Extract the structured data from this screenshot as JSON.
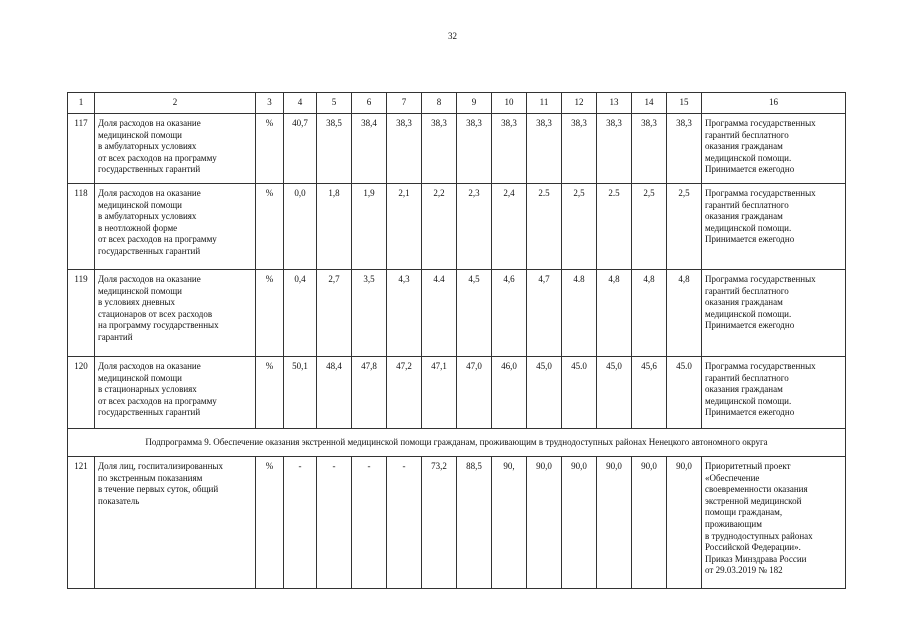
{
  "page_number": "32",
  "table": {
    "header": [
      "1",
      "2",
      "3",
      "4",
      "5",
      "6",
      "7",
      "8",
      "9",
      "10",
      "11",
      "12",
      "13",
      "14",
      "15",
      "16"
    ],
    "rows": [
      {
        "type": "row",
        "num": "117",
        "name": "Доля расходов на оказание\nмедицинской помощи\nв амбулаторных условиях\nот всех расходов на программу\nгосударственных гарантий",
        "unit": "%",
        "values": [
          "40,7",
          "38,5",
          "38,4",
          "38,3",
          "38,3",
          "38,3",
          "38,3",
          "38,3",
          "38,3",
          "38,3",
          "38,3",
          "38,3"
        ],
        "source": "Программа государственных\nгарантий бесплатного\nоказания гражданам\nмедицинской помощи.\nПринимается ежегодно"
      },
      {
        "type": "row",
        "num": "118",
        "name": "Доля расходов на оказание\nмедицинской помощи\nв амбулаторных условиях\nв неотложной форме\nот всех расходов на программу\nгосударственных гарантий",
        "unit": "%",
        "values": [
          "0,0",
          "1,8",
          "1,9",
          "2,1",
          "2,2",
          "2,3",
          "2,4",
          "2.5",
          "2,5",
          "2.5",
          "2,5",
          "2,5"
        ],
        "source": "Программа государственных\nгарантий бесплатного\nоказания гражданам\nмедицинской помощи.\nПринимается ежегодно"
      },
      {
        "type": "row",
        "num": "119",
        "name": "Доля расходов на оказание\nмедицинской помощи\nв условиях дневных\nстационаров от всех расходов\nна программу государственных\nгарантий",
        "unit": "%",
        "values": [
          "0,4",
          "2,7",
          "3,5",
          "4,3",
          "4.4",
          "4,5",
          "4,6",
          "4,7",
          "4.8",
          "4,8",
          "4,8",
          "4,8"
        ],
        "source": "Программа государственных\nгарантий бесплатного\nоказания гражданам\nмедицинской помощи.\nПринимается ежегодно"
      },
      {
        "type": "row",
        "num": "120",
        "name": "Доля расходов на оказание\nмедицинской помощи\nв стационарных условиях\nот всех расходов на программу\nгосударственных гарантий",
        "unit": "%",
        "values": [
          "50,1",
          "48,4",
          "47,8",
          "47,2",
          "47,1",
          "47,0",
          "46,0",
          "45,0",
          "45.0",
          "45,0",
          "45,6",
          "45.0"
        ],
        "source": "Программа государственных\nгарантий бесплатного\nоказания гражданам\nмедицинской помощи.\nПринимается ежегодно"
      },
      {
        "type": "sub",
        "text": "Подпрограмма 9. Обеспечение оказания экстренной медицинской помощи гражданам, проживающим в труднодоступных районах Ненецкого автономного округа"
      },
      {
        "type": "row",
        "num": "121",
        "name": "Доля лиц, госпитализированных\nпо экстренным показаниям\nв течение первых суток, общий\nпоказатель",
        "unit": "%",
        "values": [
          "-",
          "-",
          "-",
          "-",
          "73,2",
          "88,5",
          "90,",
          "90,0",
          "90,0",
          "90,0",
          "90,0",
          "90,0"
        ],
        "source": "Приоритетный проект\n«Обеспечение\nсвоевременности оказания\nэкстренной медицинской\nпомощи гражданам,\nпроживающим\nв труднодоступных районах\nРоссийской Федерации».\nПриказ Минздрава России\nот 29.03.2019 № 182"
      }
    ]
  }
}
